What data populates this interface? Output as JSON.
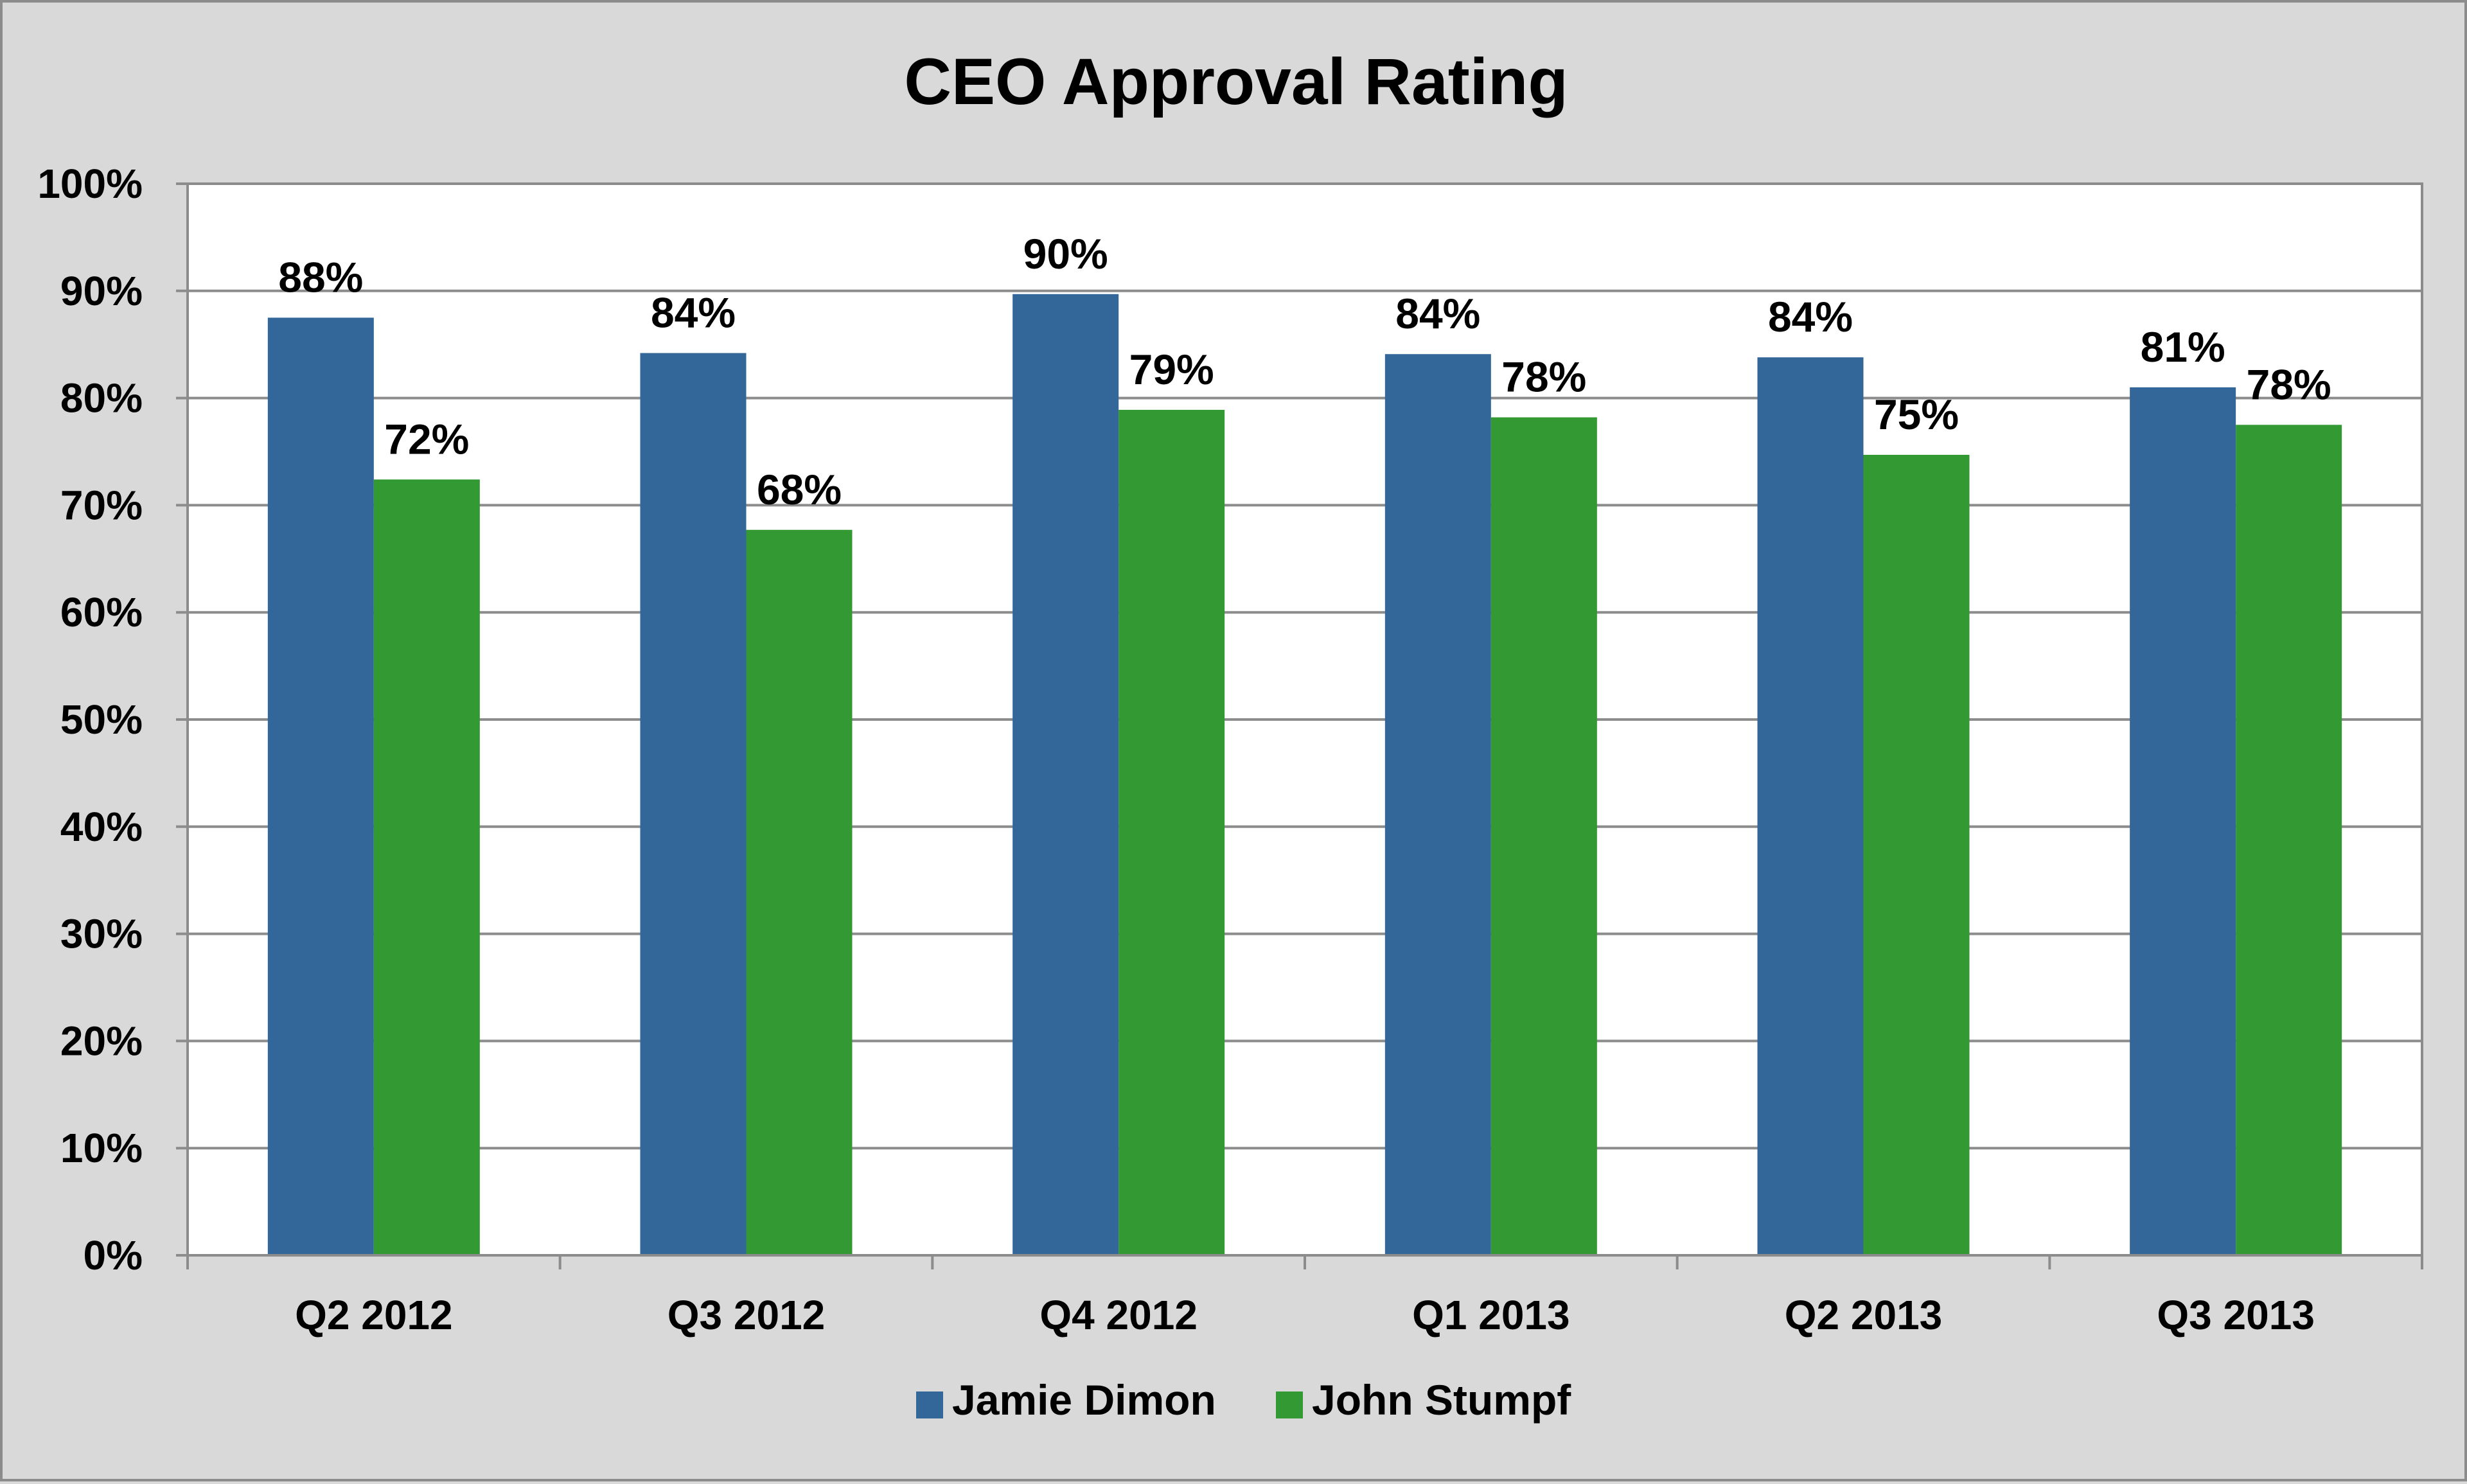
{
  "chart_data": {
    "type": "bar",
    "title": "CEO Approval Rating",
    "xlabel": "",
    "ylabel": "",
    "categories": [
      "Q2 2012",
      "Q3 2012",
      "Q4 2012",
      "Q1 2013",
      "Q2 2013",
      "Q3 2013"
    ],
    "series": [
      {
        "name": "Jamie Dimon",
        "color": "#336699",
        "values": [
          87.5,
          84.2,
          89.7,
          84.1,
          83.8,
          81.0
        ],
        "labels": [
          "88%",
          "84%",
          "90%",
          "84%",
          "84%",
          "81%"
        ]
      },
      {
        "name": "John Stumpf",
        "color": "#339933",
        "values": [
          72.4,
          67.7,
          78.9,
          78.2,
          74.7,
          77.5
        ],
        "labels": [
          "72%",
          "68%",
          "79%",
          "78%",
          "75%",
          "78%"
        ]
      }
    ],
    "ylim": [
      0,
      100
    ],
    "y_ticks": [
      0,
      10,
      20,
      30,
      40,
      50,
      60,
      70,
      80,
      90,
      100
    ],
    "y_tick_labels": [
      "0%",
      "10%",
      "20%",
      "30%",
      "40%",
      "50%",
      "60%",
      "70%",
      "80%",
      "90%",
      "100%"
    ],
    "grid": true,
    "legend_position": "bottom-center"
  }
}
